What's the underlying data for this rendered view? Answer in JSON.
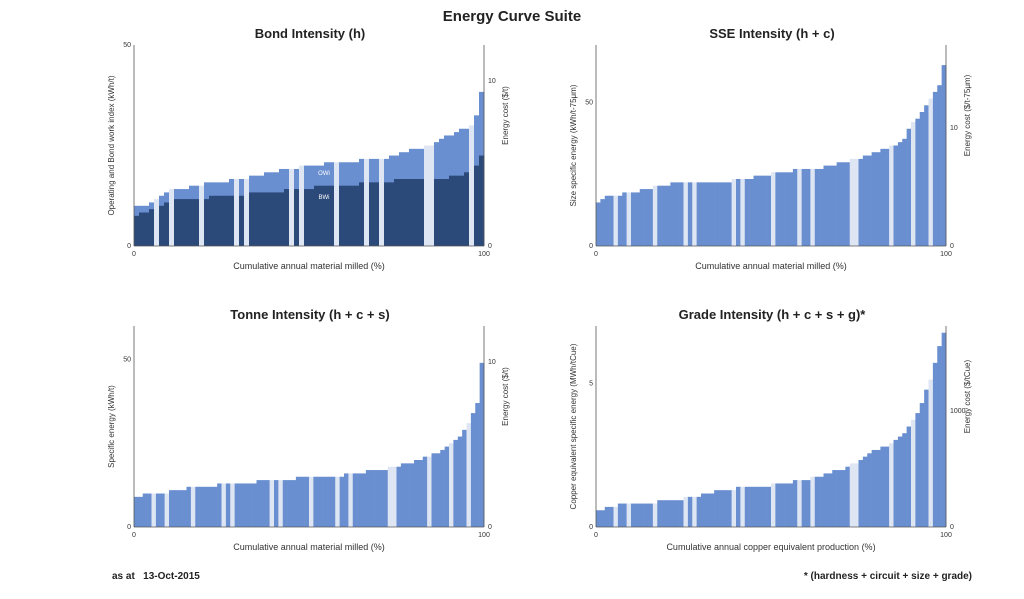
{
  "title": "Energy Curve Suite",
  "footer": {
    "date_label": "as at",
    "date": "13-Oct-2015",
    "legend_note": "* (hardness + circuit + size + grade)"
  },
  "colors": {
    "light_bar": "#6a8fd0",
    "dark_bar": "#2b4a7a",
    "highlight": "#dfe6f3",
    "axis": "#555555"
  },
  "chart_data": [
    {
      "id": "bond",
      "type": "bar",
      "title": "Bond Intensity (h)",
      "xlabel": "Cumulative annual material milled (%)",
      "ylabel": "Operating and Bond work index (kWh/t)",
      "y2label": "Energy cost ($/t)",
      "xlim": [
        0,
        100
      ],
      "ylim": [
        0,
        50
      ],
      "y2_ticks": [
        "10",
        "0"
      ],
      "x_ticks": [
        "0",
        "100"
      ],
      "y_ticks": [
        "50",
        "0"
      ],
      "series": [
        {
          "name": "OWi",
          "x": [
            0,
            5,
            10,
            15,
            20,
            30,
            40,
            50,
            60,
            70,
            75,
            80,
            85,
            90,
            94,
            97,
            98.5,
            100
          ],
          "values": [
            10,
            10.5,
            14,
            14.5,
            15.5,
            16.5,
            18.5,
            20,
            21,
            21.5,
            22.5,
            24,
            25,
            27.5,
            29,
            30.5,
            34,
            42
          ]
        },
        {
          "name": "BWi",
          "x": [
            0,
            2,
            5,
            8,
            10,
            20,
            30,
            40,
            50,
            60,
            70,
            80,
            90,
            95,
            98,
            100
          ],
          "values": [
            7.5,
            8,
            9,
            10,
            11.5,
            12,
            12.8,
            13.5,
            14.5,
            15,
            16,
            16.5,
            17,
            18,
            20,
            24
          ]
        }
      ]
    },
    {
      "id": "sse",
      "type": "bar",
      "title": "SSE Intensity (h + c)",
      "xlabel": "Cumulative annual material milled (%)",
      "ylabel": "Size specific energy (kWh/t-75μm)",
      "y2label": "Energy cost ($/t-75μm)",
      "xlim": [
        0,
        100
      ],
      "ylim": [
        0,
        70
      ],
      "y_ticks": [
        "50",
        "0"
      ],
      "y2_ticks": [
        "10",
        "0"
      ],
      "x_ticks": [
        "0",
        "100"
      ],
      "series": [
        {
          "name": "SSE",
          "x": [
            0,
            2,
            14,
            20,
            30,
            38,
            46,
            52,
            58,
            66,
            70,
            74,
            80,
            84,
            88,
            90,
            92,
            94,
            96,
            98,
            99,
            100
          ],
          "values": [
            15,
            17,
            19.5,
            21.5,
            22,
            22.5,
            24,
            25.5,
            26.5,
            27.5,
            29,
            30,
            33,
            34.5,
            37,
            42,
            44,
            48,
            52,
            56,
            60,
            68
          ]
        }
      ]
    },
    {
      "id": "tonne",
      "type": "bar",
      "title": "Tonne Intensity (h + c + s)",
      "xlabel": "Cumulative annual material milled (%)",
      "ylabel": "Specific energy (kWh/t)",
      "y2label": "Energy cost ($/t)",
      "xlim": [
        0,
        100
      ],
      "ylim": [
        0,
        60
      ],
      "y_ticks": [
        "50",
        "0"
      ],
      "y2_ticks": [
        "10",
        "0"
      ],
      "x_ticks": [
        "0",
        "100"
      ],
      "series": [
        {
          "name": "Specific energy",
          "x": [
            0,
            5,
            10,
            15,
            20,
            30,
            40,
            50,
            60,
            70,
            75,
            80,
            85,
            88,
            90,
            92,
            94,
            96,
            98,
            99,
            100
          ],
          "values": [
            9,
            9.8,
            10.5,
            11.5,
            12.2,
            13,
            14,
            14.8,
            15.5,
            17,
            18,
            19.5,
            21.5,
            22.8,
            24,
            26,
            28,
            32,
            36,
            42,
            60
          ]
        }
      ]
    },
    {
      "id": "grade",
      "type": "bar",
      "title": "Grade Intensity (h + c + s + g)*",
      "xlabel": "Cumulative annual copper equivalent production (%)",
      "ylabel": "Copper equivalent specific energy (MWh/tCue)",
      "y2label": "Energy cost ($/tCue)",
      "xlim": [
        0,
        100
      ],
      "ylim": [
        0,
        7
      ],
      "y_ticks": [
        "5",
        "0"
      ],
      "y2_ticks": [
        "1000",
        "0"
      ],
      "x_ticks": [
        "0",
        "100"
      ],
      "series": [
        {
          "name": "Cu eq. specific energy",
          "x": [
            0,
            3,
            8,
            15,
            20,
            25,
            30,
            35,
            40,
            45,
            50,
            55,
            60,
            65,
            70,
            75,
            78,
            82,
            86,
            88,
            90,
            92,
            94,
            96,
            98,
            100
          ],
          "values": [
            0.5,
            0.65,
            0.8,
            0.85,
            0.9,
            1.0,
            1.1,
            1.25,
            1.35,
            1.4,
            1.45,
            1.55,
            1.65,
            1.8,
            2.0,
            2.3,
            2.6,
            2.8,
            3.0,
            3.3,
            3.6,
            4.0,
            4.6,
            5.3,
            6.2,
            7.0
          ]
        }
      ]
    }
  ]
}
